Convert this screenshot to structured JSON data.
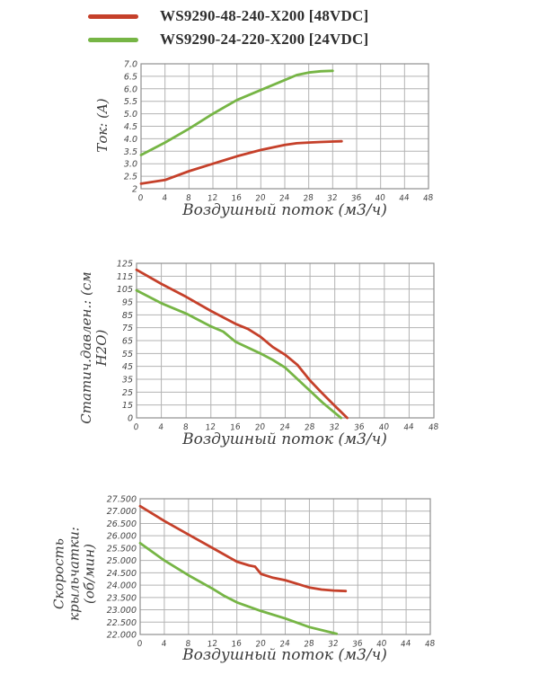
{
  "legend": {
    "items": [
      {
        "label": "WS9290-48-240-X200  [48VDC]",
        "color": "#c5402a"
      },
      {
        "label": "WS9290-24-220-X200  [24VDC]",
        "color": "#76b545"
      }
    ]
  },
  "chart_data": [
    {
      "type": "line",
      "title": "",
      "xlabel": "Воздушный поток (м3/ч)",
      "ylabel": "Ток: (A)",
      "xlim": [
        0,
        48
      ],
      "xticks": [
        0,
        4,
        8,
        12,
        16,
        20,
        24,
        28,
        32,
        36,
        40,
        44,
        48
      ],
      "ytick_values": [
        2,
        2.5,
        3,
        3.5,
        4,
        4.5,
        5,
        5.5,
        6,
        6.5,
        7
      ],
      "ytick_labels": [
        "2",
        "2.5",
        "3.0",
        "3.5",
        "4.0",
        "4.5",
        "5.0",
        "5.5",
        "6.0",
        "6.5",
        "7.0"
      ],
      "grid": true,
      "legend_position": "none",
      "series": [
        {
          "name": "WS9290-48-240-X200 [48VDC]",
          "color": "#c5402a",
          "x": [
            0,
            4,
            8,
            12,
            16,
            20,
            24,
            26,
            28,
            30,
            32,
            33.5
          ],
          "y": [
            2.2,
            2.35,
            2.7,
            3.0,
            3.3,
            3.55,
            3.75,
            3.82,
            3.85,
            3.87,
            3.89,
            3.9
          ]
        },
        {
          "name": "WS9290-24-220-X200 [24VDC]",
          "color": "#76b545",
          "x": [
            0,
            4,
            8,
            12,
            16,
            20,
            24,
            26,
            28,
            30,
            32
          ],
          "y": [
            3.35,
            3.85,
            4.4,
            5.0,
            5.55,
            5.95,
            6.35,
            6.55,
            6.65,
            6.7,
            6.72
          ]
        }
      ]
    },
    {
      "type": "line",
      "title": "",
      "xlabel": "Воздушный поток (м3/ч)",
      "ylabel": "Статич.давлен.: (см H2O)",
      "xlim": [
        0,
        48
      ],
      "xticks": [
        0,
        4,
        8,
        12,
        16,
        20,
        24,
        28,
        32,
        36,
        40,
        44,
        48
      ],
      "ytick_values": [
        0,
        15,
        25,
        35,
        45,
        55,
        65,
        75,
        85,
        95,
        105,
        115,
        125
      ],
      "ytick_labels": [
        "0",
        "15",
        "25",
        "35",
        "45",
        "55",
        "65",
        "75",
        "85",
        "95",
        "105",
        "115",
        "125"
      ],
      "grid": true,
      "legend_position": "none",
      "series": [
        {
          "name": "WS9290-48-240-X200 [48VDC]",
          "color": "#c5402a",
          "x": [
            0,
            4,
            8,
            12,
            16,
            18,
            20,
            22,
            24,
            26,
            28,
            30,
            32,
            34
          ],
          "y": [
            120,
            109,
            99,
            88,
            78,
            74,
            68,
            60,
            54,
            46,
            34,
            24,
            14,
            0
          ]
        },
        {
          "name": "WS9290-24-220-X200 [24VDC]",
          "color": "#76b545",
          "x": [
            0,
            4,
            8,
            12,
            14,
            16,
            20,
            22,
            24,
            26,
            28,
            30,
            32,
            33
          ],
          "y": [
            104,
            94,
            86,
            76,
            72,
            64,
            55,
            50,
            44,
            35,
            26,
            17,
            6,
            0
          ]
        }
      ]
    },
    {
      "type": "line",
      "title": "",
      "xlabel": "Воздушный поток (м3/ч)",
      "ylabel": "Скорость крыльчатки:\n(об/мин)",
      "xlim": [
        0,
        48
      ],
      "xticks": [
        0,
        4,
        8,
        12,
        16,
        20,
        24,
        28,
        32,
        36,
        40,
        44,
        48
      ],
      "ytick_values": [
        22000,
        22500,
        23000,
        23500,
        24000,
        24500,
        25000,
        25500,
        26000,
        26500,
        27000,
        27500
      ],
      "ytick_labels": [
        "22.000",
        "22.500",
        "23.000",
        "23.500",
        "24.000",
        "24.500",
        "25.000",
        "25.500",
        "26.000",
        "26.500",
        "27.000",
        "27.500"
      ],
      "grid": true,
      "legend_position": "none",
      "series": [
        {
          "name": "WS9290-48-240-X200 [48VDC]",
          "color": "#c5402a",
          "x": [
            0,
            4,
            8,
            12,
            16,
            18,
            19,
            20,
            22,
            24,
            26,
            28,
            30,
            32,
            34
          ],
          "y": [
            27200,
            26600,
            26050,
            25500,
            24950,
            24800,
            24750,
            24450,
            24300,
            24200,
            24050,
            23900,
            23820,
            23780,
            23760
          ]
        },
        {
          "name": "WS9290-24-220-X200 [24VDC]",
          "color": "#76b545",
          "x": [
            0,
            4,
            8,
            12,
            14,
            16,
            20,
            24,
            28,
            32,
            32.5
          ],
          "y": [
            25700,
            25000,
            24400,
            23850,
            23550,
            23300,
            22950,
            22650,
            22300,
            22060,
            22030
          ]
        }
      ]
    }
  ]
}
